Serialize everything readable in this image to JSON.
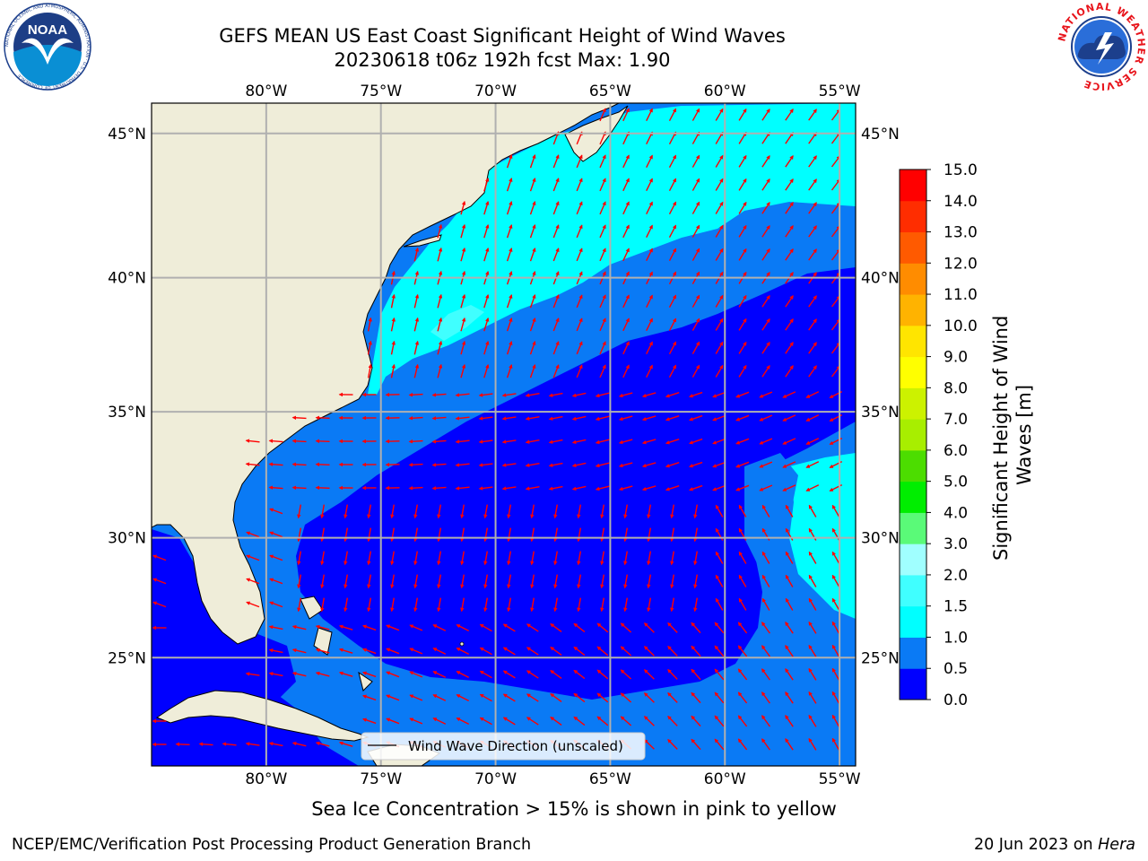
{
  "header": {
    "title_line1": "GEFS MEAN US East Coast Significant Height of Wind Waves",
    "title_line2": "20230618 t06z 192h fcst   Max: 1.90"
  },
  "map": {
    "lon_labels": [
      "80°W",
      "75°W",
      "70°W",
      "65°W",
      "60°W",
      "55°W"
    ],
    "lat_labels": [
      "45°N",
      "40°N",
      "35°N",
      "30°N",
      "25°N"
    ],
    "lon_values": [
      -80,
      -75,
      -70,
      -65,
      -60,
      -55
    ],
    "lat_values": [
      45,
      40,
      35,
      30,
      25
    ],
    "lon_range": [
      -85,
      -54.3
    ],
    "lat_range": [
      20.3,
      46
    ],
    "legend_label": "Wind Wave Direction (unscaled)",
    "colors": {
      "land": "#efedd9",
      "arrow": "#ff0000",
      "grid": "#b0b0b0"
    }
  },
  "colorbar": {
    "label": "Significant Height of Wind Waves [m]",
    "tick_labels": [
      "0.0",
      "0.5",
      "1.0",
      "1.5",
      "2.0",
      "3.0",
      "4.0",
      "5.0",
      "6.0",
      "7.0",
      "8.0",
      "9.0",
      "10.0",
      "11.0",
      "12.0",
      "13.0",
      "14.0",
      "15.0"
    ],
    "colors": [
      "#0000ff",
      "#0a7af5",
      "#00ffff",
      "#40ffff",
      "#a0ffff",
      "#5afa78",
      "#00ee00",
      "#4cdd00",
      "#a8ee00",
      "#ccf200",
      "#ffff00",
      "#ffe500",
      "#ffb300",
      "#ff8c00",
      "#ff5a00",
      "#ff2d00",
      "#ff0000"
    ]
  },
  "logos": {
    "noaa": {
      "text": "NOAA",
      "ring_text": "NATIONAL OCEANIC AND ATMOSPHERIC ADMINISTRATION · U.S. DEPARTMENT OF COMMERCE"
    },
    "nws": {
      "ring_text": "NATIONAL WEATHER SERVICE"
    }
  },
  "caption": "Sea Ice Concentration > 15% is shown in pink to yellow",
  "footer": {
    "left": "NCEP/EMC/Verification Post Processing Product Generation Branch",
    "date": "20 Jun 2023 on ",
    "host": "Hera"
  }
}
